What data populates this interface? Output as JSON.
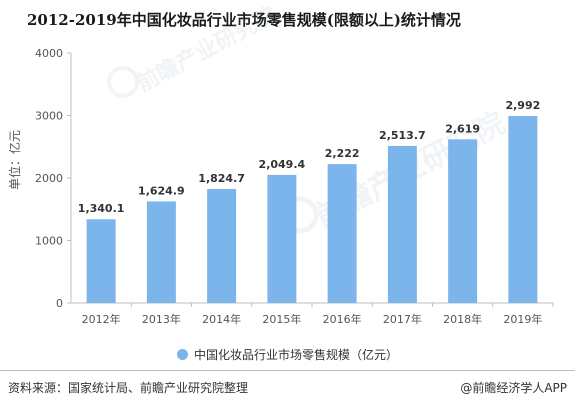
{
  "chart_data": {
    "type": "bar",
    "title": "2012-2019年中国化妆品行业市场零售规模(限额以上)统计情况",
    "ylabel": "单位：亿元",
    "categories": [
      "2012年",
      "2013年",
      "2014年",
      "2015年",
      "2016年",
      "2017年",
      "2018年",
      "2019年"
    ],
    "series": [
      {
        "name": "中国化妆品行业市场零售规模（亿元）",
        "values": [
          1340.1,
          1624.9,
          1824.7,
          2049.4,
          2222,
          2513.7,
          2619,
          2992
        ],
        "labels": [
          "1,340.1",
          "1,624.9",
          "1,824.7",
          "2,049.4",
          "2,222",
          "2,513.7",
          "2,619",
          "2,992"
        ]
      }
    ],
    "ylim": [
      0,
      4000
    ],
    "yticks": [
      0,
      1000,
      2000,
      3000,
      4000
    ],
    "grid": false,
    "legend": "bottom",
    "bar_color": "#7cb5ec"
  },
  "footer": {
    "source": "资料来源：国家统计局、前瞻产业研究院整理",
    "brand": "@前瞻经济学人APP"
  },
  "watermark": {
    "text": "前瞻产业研究院"
  }
}
